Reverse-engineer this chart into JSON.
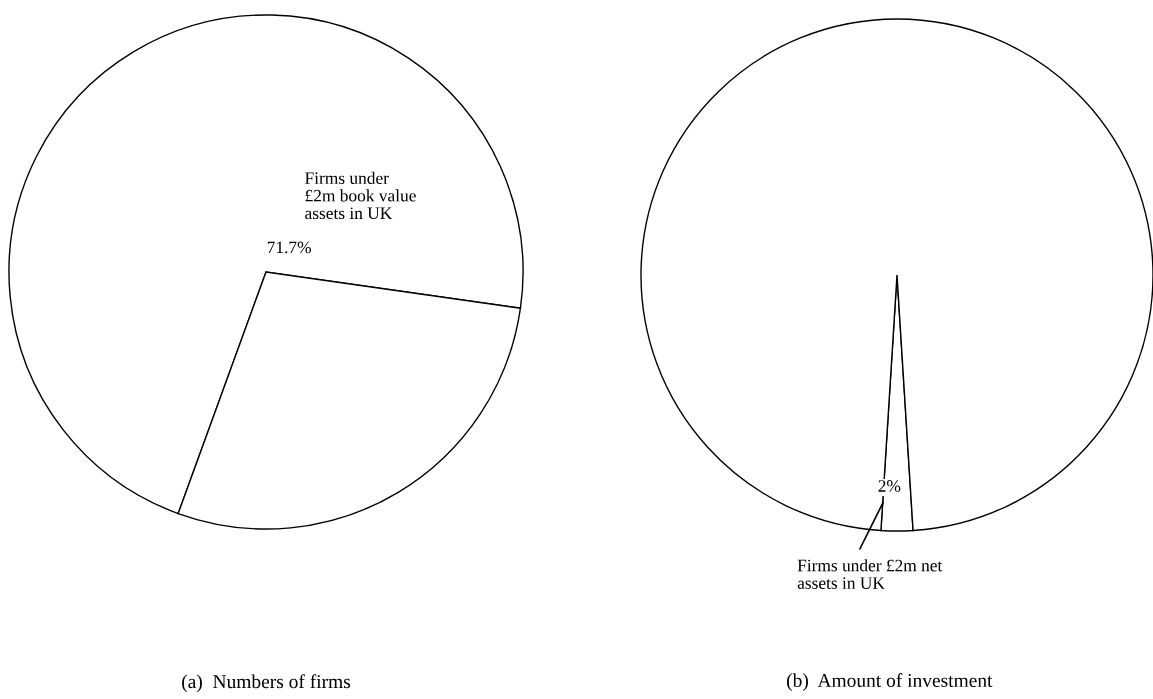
{
  "chart_data": [
    {
      "type": "pie",
      "title": "(a)  Numbers of firms",
      "categories": [
        "Firms under\n£2m book value\nassets in UK",
        null
      ],
      "values": [
        71.7,
        28.3
      ],
      "value_labels": [
        "71.7%",
        null
      ],
      "colors": [
        "#ffffff",
        "#ffffff"
      ]
    },
    {
      "type": "pie",
      "title": "(b)  Amount of investment",
      "categories": [
        "Firms under £2m net\nassets in UK",
        null
      ],
      "values": [
        2,
        98
      ],
      "value_labels": [
        "2%",
        null
      ],
      "colors": [
        "#ffffff",
        "#ffffff"
      ]
    }
  ]
}
